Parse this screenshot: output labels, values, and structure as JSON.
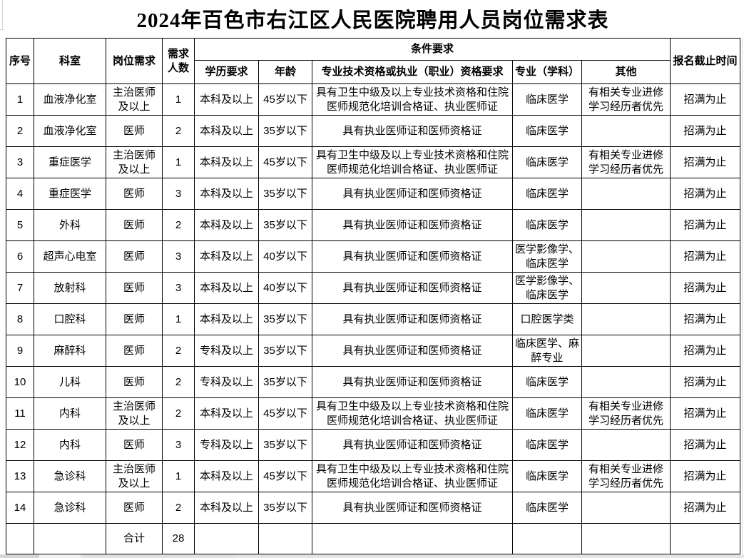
{
  "title": "2024年百色市右江区人民医院聘用人员岗位需求表",
  "table": {
    "headers": {
      "xuhao": "序号",
      "keshi": "科室",
      "gangwei": "岗位需求",
      "renshu": "需求人数",
      "tiaojian": "条件要求",
      "xueli": "学历要求",
      "nianling": "年龄",
      "zige": "专业技术资格或执业（职业）资格要求",
      "zhuanye": "专业（学科）",
      "qita": "其他",
      "jiezhi": "报名截止时间"
    },
    "rows": [
      {
        "no": "1",
        "dept": "血液净化室",
        "post": "主治医师及以上",
        "count": "1",
        "edu": "本科及以上",
        "age": "45岁以下",
        "qual": "具有卫生中级及以上专业技术资格和住院医师规范化培训合格证、执业医师证",
        "major": "临床医学",
        "other": "有相关专业进修学习经历者优先",
        "deadline": "招满为止"
      },
      {
        "no": "2",
        "dept": "血液净化室",
        "post": "医师",
        "count": "2",
        "edu": "本科及以上",
        "age": "35岁以下",
        "qual": "具有执业医师证和医师资格证",
        "major": "临床医学",
        "other": "",
        "deadline": "招满为止"
      },
      {
        "no": "3",
        "dept": "重症医学",
        "post": "主治医师及以上",
        "count": "1",
        "edu": "本科及以上",
        "age": "45岁以下",
        "qual": "具有卫生中级及以上专业技术资格和住院医师规范化培训合格证、执业医师证",
        "major": "临床医学",
        "other": "有相关专业进修学习经历者优先",
        "deadline": "招满为止"
      },
      {
        "no": "4",
        "dept": "重症医学",
        "post": "医师",
        "count": "3",
        "edu": "本科及以上",
        "age": "35岁以下",
        "qual": "具有执业医师证和医师资格证",
        "major": "临床医学",
        "other": "",
        "deadline": "招满为止"
      },
      {
        "no": "5",
        "dept": "外科",
        "post": "医师",
        "count": "2",
        "edu": "本科及以上",
        "age": "35岁以下",
        "qual": "具有执业医师证和医师资格证",
        "major": "临床医学",
        "other": "",
        "deadline": "招满为止"
      },
      {
        "no": "6",
        "dept": "超声心电室",
        "post": "医师",
        "count": "3",
        "edu": "本科及以上",
        "age": "40岁以下",
        "qual": "具有执业医师证和医师资格证",
        "major": "医学影像学、临床医学",
        "other": "",
        "deadline": "招满为止"
      },
      {
        "no": "7",
        "dept": "放射科",
        "post": "医师",
        "count": "3",
        "edu": "本科及以上",
        "age": "40岁以下",
        "qual": "具有执业医师证和医师资格证",
        "major": "医学影像学、临床医学",
        "other": "",
        "deadline": "招满为止"
      },
      {
        "no": "8",
        "dept": "口腔科",
        "post": "医师",
        "count": "1",
        "edu": "本科及以上",
        "age": "35岁以下",
        "qual": "具有执业医师证和医师资格证",
        "major": "口腔医学类",
        "other": "",
        "deadline": "招满为止"
      },
      {
        "no": "9",
        "dept": "麻醉科",
        "post": "医师",
        "count": "2",
        "edu": "专科及以上",
        "age": "35岁以下",
        "qual": "具有执业医师证和医师资格证",
        "major": "临床医学、麻醉专业",
        "other": "",
        "deadline": "招满为止"
      },
      {
        "no": "10",
        "dept": "儿科",
        "post": "医师",
        "count": "2",
        "edu": "专科及以上",
        "age": "35岁以下",
        "qual": "具有执业医师证和医师资格证",
        "major": "临床医学",
        "other": "",
        "deadline": "招满为止"
      },
      {
        "no": "11",
        "dept": "内科",
        "post": "主治医师及以上",
        "count": "2",
        "edu": "本科及以上",
        "age": "45岁以下",
        "qual": "具有卫生中级及以上专业技术资格和住院医师规范化培训合格证、执业医师证",
        "major": "临床医学",
        "other": "有相关专业进修学习经历者优先",
        "deadline": "招满为止"
      },
      {
        "no": "12",
        "dept": "内科",
        "post": "医师",
        "count": "3",
        "edu": "专科及以上",
        "age": "35岁以下",
        "qual": "具有执业医师证和医师资格证",
        "major": "临床医学",
        "other": "",
        "deadline": "招满为止"
      },
      {
        "no": "13",
        "dept": "急诊科",
        "post": "主治医师及以上",
        "count": "1",
        "edu": "本科及以上",
        "age": "45岁以下",
        "qual": "具有卫生中级及以上专业技术资格和住院医师规范化培训合格证、执业医师证",
        "major": "临床医学",
        "other": "有相关专业进修学习经历者优先",
        "deadline": "招满为止"
      },
      {
        "no": "14",
        "dept": "急诊科",
        "post": "医师",
        "count": "2",
        "edu": "本科及以上",
        "age": "35岁以下",
        "qual": "具有执业医师证和医师资格证",
        "major": "临床医学",
        "other": "",
        "deadline": "招满为止"
      }
    ],
    "total_row": {
      "label": "合计",
      "total": "28"
    }
  }
}
